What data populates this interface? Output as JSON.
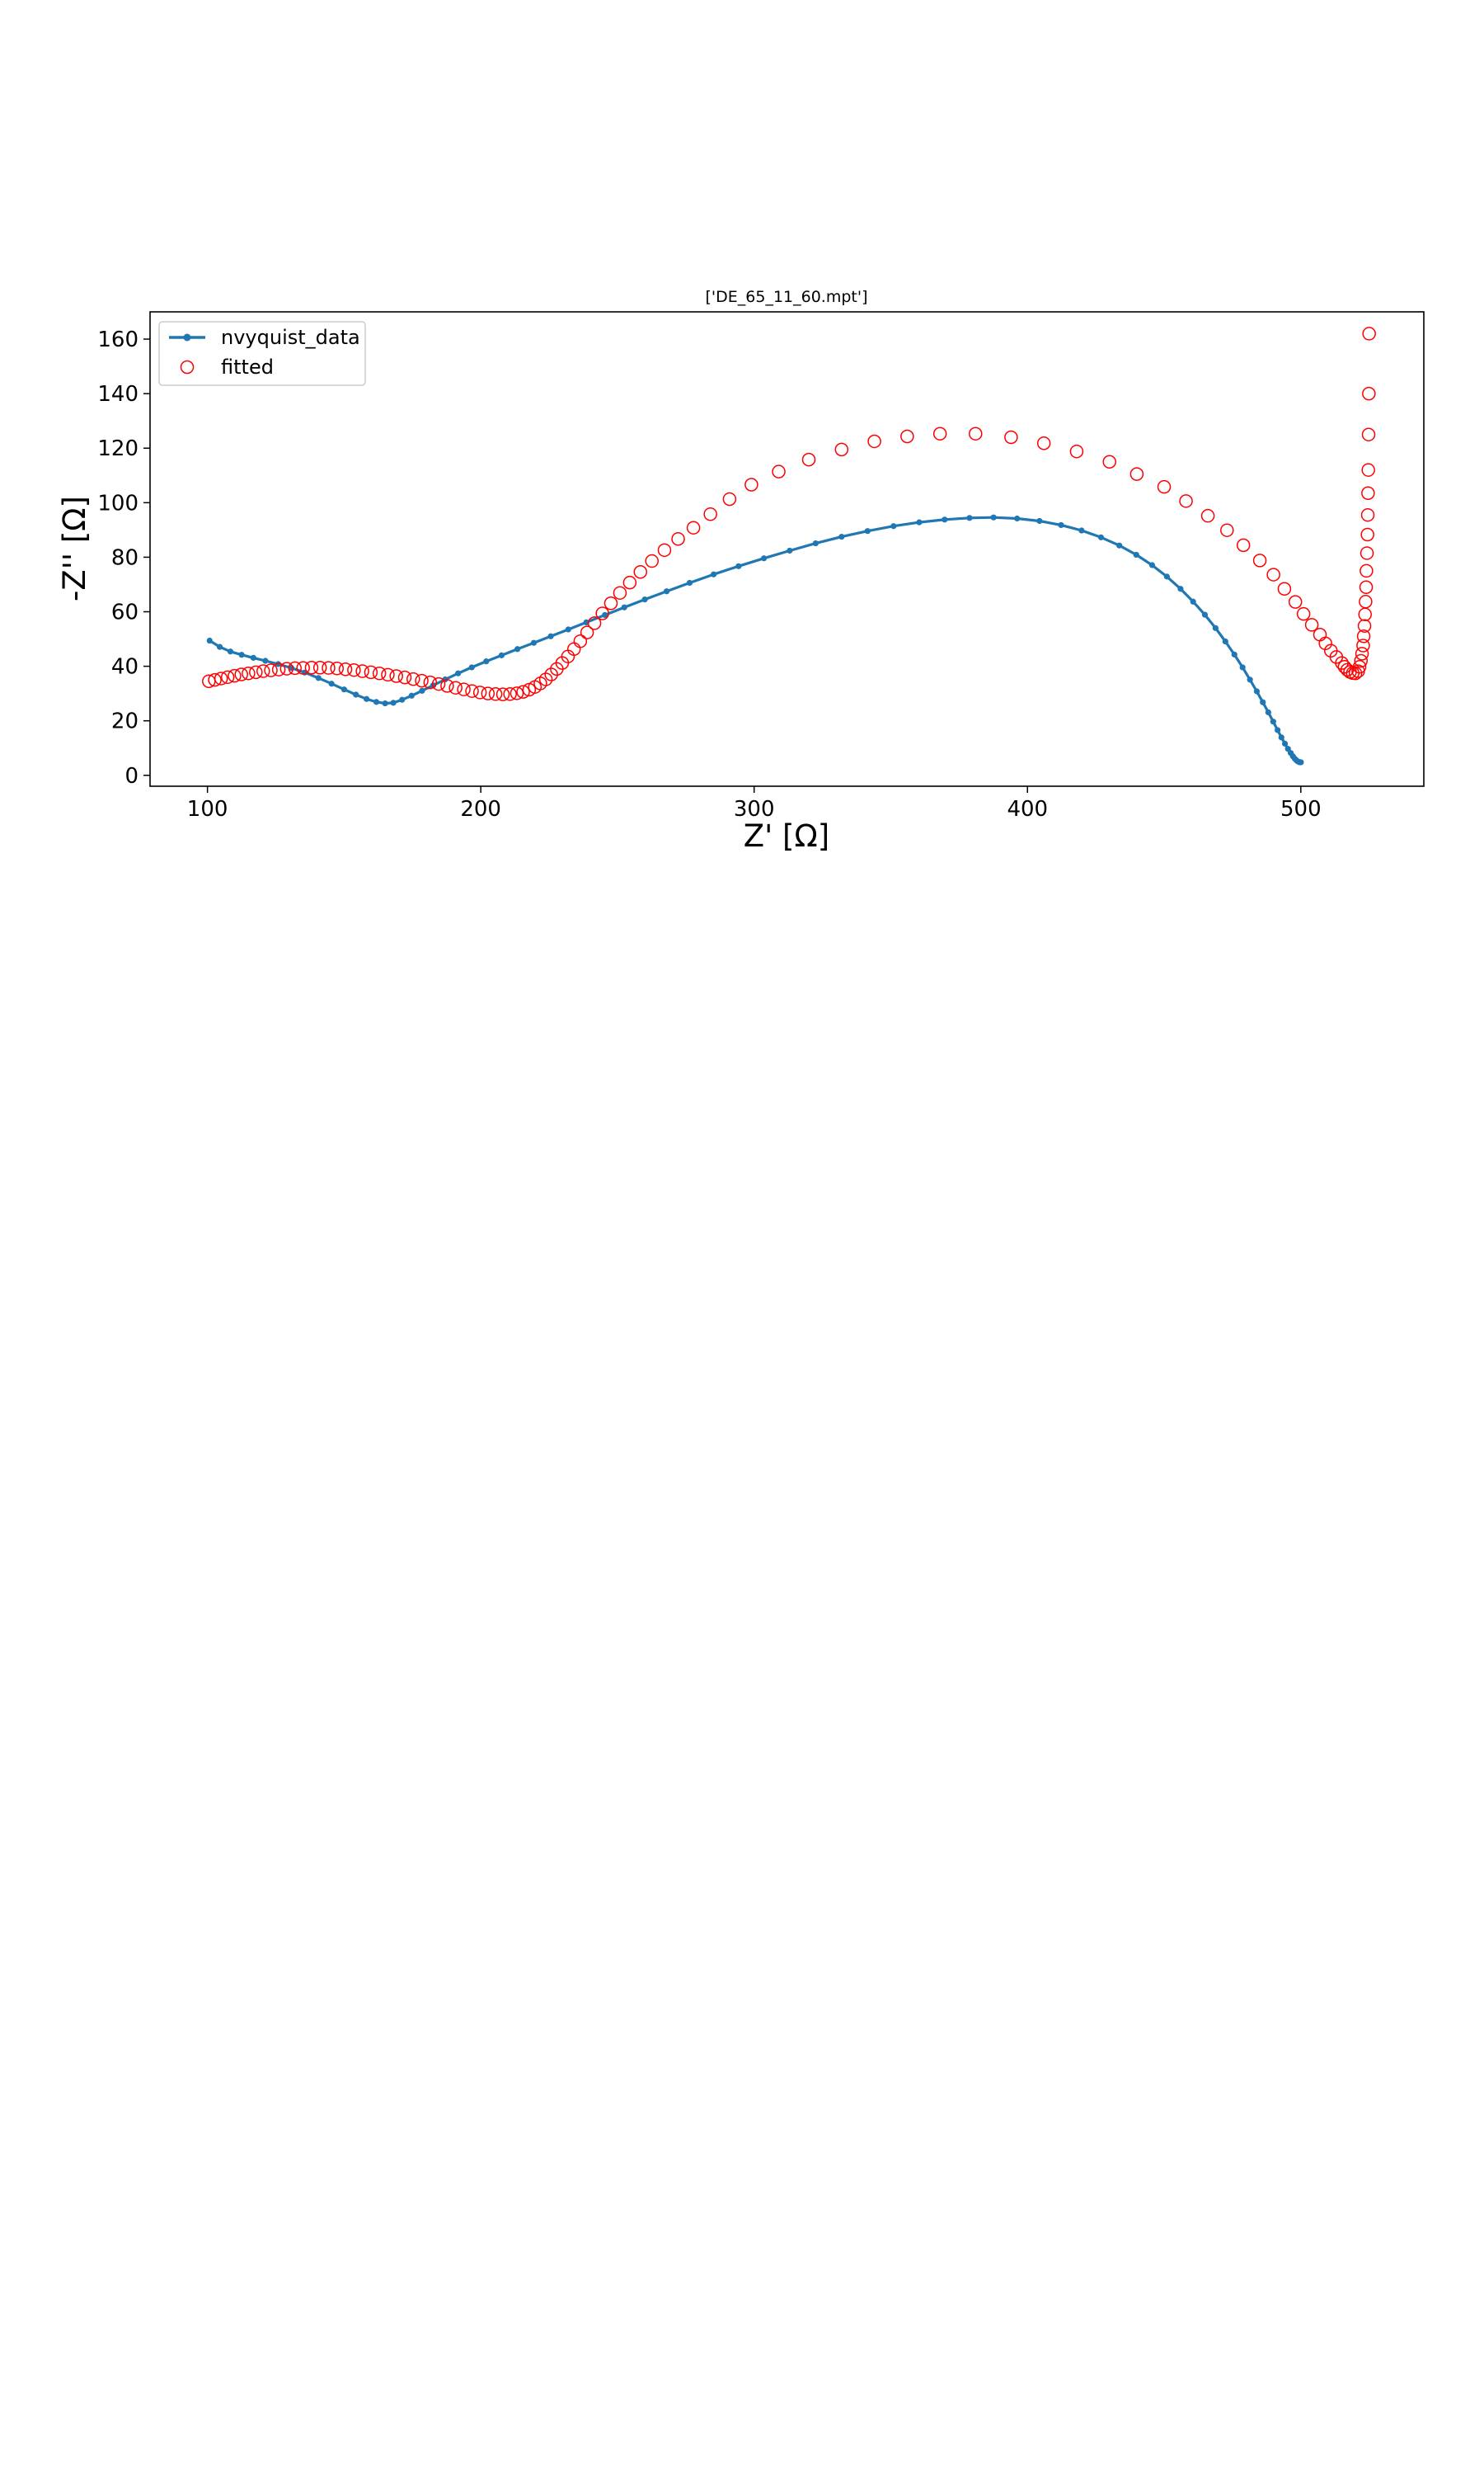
{
  "chart_data": {
    "type": "scatter",
    "title": "['DE_65_11_60.mpt']",
    "xlabel": "Z' [Ω]",
    "ylabel": "-Z'' [Ω]",
    "xlim": [
      79,
      545
    ],
    "ylim": [
      -4,
      170
    ],
    "xticks": [
      100,
      200,
      300,
      400,
      500
    ],
    "yticks": [
      0,
      20,
      40,
      60,
      80,
      100,
      120,
      140,
      160
    ],
    "grid": false,
    "legend_position": "top-left",
    "colors": {
      "nvyquist_data": "#1f77b4",
      "fitted": "#ff0000"
    },
    "series": [
      {
        "name": "nvyquist_data",
        "style": "line-with-dot-markers",
        "x": [
          100.8,
          104.5,
          108.4,
          112.5,
          116.8,
          121.2,
          125.9,
          130.7,
          135.6,
          140.6,
          145.4,
          150.0,
          154.3,
          158.2,
          161.8,
          165.0,
          168.0,
          171.2,
          174.7,
          178.5,
          182.6,
          187.0,
          191.7,
          196.7,
          202.0,
          207.6,
          213.4,
          219.4,
          225.6,
          232.0,
          238.6,
          245.4,
          252.5,
          260.0,
          268.0,
          276.4,
          285.2,
          294.3,
          303.6,
          313.0,
          322.5,
          332.0,
          341.5,
          351.0,
          360.4,
          369.7,
          378.8,
          387.6,
          396.2,
          404.4,
          412.3,
          419.8,
          426.9,
          433.6,
          439.8,
          445.6,
          451.0,
          456.0,
          460.6,
          464.9,
          468.8,
          472.4,
          475.7,
          478.7,
          481.4,
          483.9,
          486.1,
          488.1,
          489.9,
          491.5,
          492.9,
          494.2,
          495.3,
          496.3,
          497.1,
          497.8,
          498.4,
          498.9,
          499.3,
          499.6,
          499.8,
          499.9,
          500.0,
          500.0
        ],
        "y": [
          49.4,
          47.1,
          45.4,
          44.2,
          43.1,
          42.0,
          40.8,
          39.4,
          37.7,
          35.7,
          33.6,
          31.5,
          29.6,
          28.0,
          26.9,
          26.4,
          26.6,
          27.7,
          29.2,
          31.0,
          33.0,
          35.2,
          37.4,
          39.6,
          41.8,
          44.0,
          46.3,
          48.6,
          51.0,
          53.5,
          56.1,
          58.8,
          61.6,
          64.5,
          67.5,
          70.6,
          73.7,
          76.7,
          79.6,
          82.4,
          85.1,
          87.5,
          89.6,
          91.4,
          92.8,
          93.8,
          94.4,
          94.6,
          94.2,
          93.3,
          91.8,
          89.8,
          87.3,
          84.3,
          80.9,
          77.1,
          72.9,
          68.4,
          63.7,
          58.9,
          54.0,
          49.1,
          44.3,
          39.6,
          35.1,
          30.8,
          26.8,
          23.1,
          19.7,
          16.6,
          13.9,
          11.6,
          9.7,
          8.2,
          7.0,
          6.1,
          5.5,
          5.1,
          4.9,
          4.8,
          4.8,
          4.8,
          4.8,
          4.8
        ]
      },
      {
        "name": "fitted",
        "style": "open-circle-markers",
        "x": [
          100.5,
          102.7,
          105.0,
          107.4,
          109.9,
          112.4,
          115.0,
          117.7,
          120.4,
          123.2,
          126.1,
          129.0,
          132.0,
          135.0,
          138.1,
          141.2,
          144.3,
          147.4,
          150.5,
          153.6,
          156.7,
          159.8,
          162.9,
          166.0,
          169.1,
          172.2,
          175.3,
          178.4,
          181.5,
          184.6,
          187.7,
          190.8,
          193.8,
          196.8,
          199.7,
          202.6,
          205.4,
          208.1,
          210.7,
          213.2,
          215.5,
          217.7,
          219.8,
          221.8,
          223.8,
          225.8,
          227.8,
          229.8,
          231.9,
          234.1,
          236.4,
          238.9,
          241.6,
          244.5,
          247.6,
          250.9,
          254.5,
          258.4,
          262.6,
          267.2,
          272.2,
          277.8,
          284.0,
          291.0,
          299.0,
          309.0,
          320.0,
          332.0,
          344.0,
          356.0,
          368.0,
          381.0,
          394.0,
          406.0,
          418.0,
          430.0,
          440.0,
          450.0,
          458.0,
          466.0,
          473.0,
          479.0,
          485.0,
          490.0,
          494.0,
          498.0,
          501.0,
          504.0,
          507.0,
          509.0,
          511.0,
          513.0,
          515.0,
          516.0,
          517.0,
          518.0,
          519.0,
          520.0,
          521.0,
          521.5,
          522.0,
          522.4,
          522.8,
          523.0,
          523.3,
          523.5,
          523.7,
          523.9,
          524.0,
          524.2,
          524.4,
          524.5,
          524.6,
          524.7,
          524.8,
          524.9,
          525.0
        ],
        "y": [
          34.5,
          35.0,
          35.5,
          36.0,
          36.5,
          37.0,
          37.4,
          37.8,
          38.2,
          38.5,
          38.8,
          39.1,
          39.3,
          39.4,
          39.5,
          39.5,
          39.4,
          39.2,
          38.9,
          38.6,
          38.2,
          37.8,
          37.4,
          36.9,
          36.4,
          35.9,
          35.3,
          34.7,
          34.1,
          33.5,
          32.8,
          32.1,
          31.5,
          30.9,
          30.4,
          30.0,
          29.8,
          29.7,
          29.8,
          30.1,
          30.6,
          31.4,
          32.4,
          33.7,
          35.2,
          37.0,
          39.0,
          41.2,
          43.6,
          46.3,
          49.2,
          52.4,
          55.8,
          59.4,
          63.1,
          66.9,
          70.7,
          74.6,
          78.6,
          82.6,
          86.7,
          90.8,
          95.8,
          101.3,
          106.6,
          111.4,
          115.8,
          119.5,
          122.5,
          124.3,
          125.3,
          125.3,
          124.0,
          121.8,
          118.8,
          115.0,
          110.5,
          105.8,
          100.6,
          95.2,
          89.9,
          84.4,
          78.8,
          73.6,
          68.4,
          63.6,
          59.2,
          55.2,
          51.6,
          48.4,
          45.7,
          43.4,
          41.2,
          39.8,
          38.7,
          37.9,
          37.5,
          37.4,
          38.2,
          39.8,
          42.0,
          44.6,
          47.6,
          51.0,
          54.8,
          59.0,
          63.7,
          69.0,
          75.0,
          81.5,
          88.3,
          95.5,
          103.5,
          112.0,
          125.0,
          140.0,
          162.0
        ]
      }
    ]
  }
}
